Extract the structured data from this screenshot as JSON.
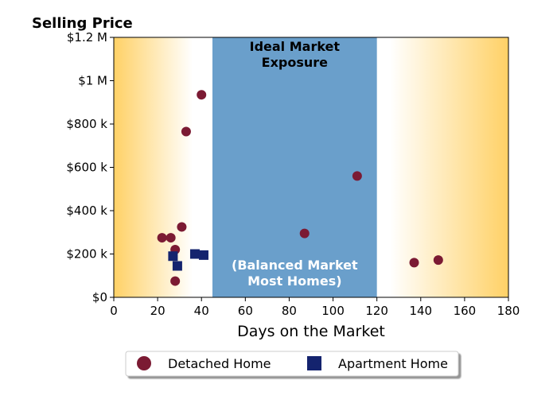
{
  "chart_data": {
    "type": "scatter",
    "title": "Selling Price",
    "xlabel": "Days on the Market",
    "ylabel": "",
    "xlim": [
      0,
      180
    ],
    "ylim": [
      0,
      1200000
    ],
    "x_ticks": [
      0,
      20,
      40,
      60,
      80,
      100,
      120,
      140,
      160,
      180
    ],
    "y_ticks": [
      0,
      200000,
      400000,
      600000,
      800000,
      1000000,
      1200000
    ],
    "y_tick_labels": [
      "$0",
      "$200 k",
      "$400 k",
      "$600 k",
      "$800 k",
      "$1 M",
      "$1.2 M"
    ],
    "grid": false,
    "legend_position": "bottom",
    "band": {
      "x_range": [
        45,
        120
      ],
      "color": "#6a9fcb",
      "label_top": "Ideal Market\nExposure",
      "label_bottom": "(Balanced Market\nMost Homes)"
    },
    "background_gradient_color": "#ffd166",
    "series": [
      {
        "name": "Detached Home",
        "marker": "circle",
        "color": "#7b1a33",
        "points": [
          {
            "x": 22,
            "y": 275000
          },
          {
            "x": 26,
            "y": 275000
          },
          {
            "x": 28,
            "y": 220000
          },
          {
            "x": 28,
            "y": 75000
          },
          {
            "x": 31,
            "y": 325000
          },
          {
            "x": 33,
            "y": 765000
          },
          {
            "x": 40,
            "y": 935000
          },
          {
            "x": 87,
            "y": 295000
          },
          {
            "x": 111,
            "y": 560000
          },
          {
            "x": 137,
            "y": 160000
          },
          {
            "x": 148,
            "y": 172000
          }
        ]
      },
      {
        "name": "Apartment Home",
        "marker": "square",
        "color": "#14236e",
        "points": [
          {
            "x": 27,
            "y": 190000
          },
          {
            "x": 29,
            "y": 145000
          },
          {
            "x": 37,
            "y": 200000
          },
          {
            "x": 41,
            "y": 195000
          }
        ]
      }
    ]
  }
}
